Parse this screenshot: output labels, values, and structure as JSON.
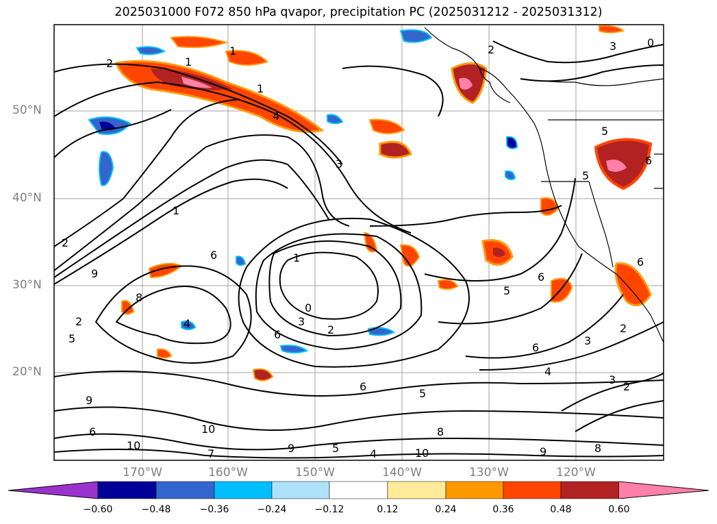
{
  "title": "2025031000 F072 850 hPa qvapor, precipitation PC (2025031212 - 2025031312)",
  "lat_labels": [
    "50°N",
    "40°N",
    "30°N",
    "20°N"
  ],
  "lon_labels": [
    "170°W",
    "160°W",
    "150°W",
    "140°W",
    "130°W",
    "120°W"
  ],
  "colorbar": {
    "colors": [
      "#9933cc",
      "#000099",
      "#3366cc",
      "#00bfff",
      "#aee2fa",
      "#ffffff",
      "#ffeb99",
      "#ff9900",
      "#ff4500",
      "#b22222",
      "#ff80aa"
    ],
    "ticks": [
      "−0.60",
      "−0.48",
      "−0.36",
      "−0.24",
      "−0.12",
      "0.12",
      "0.24",
      "0.36",
      "0.48",
      "0.60"
    ]
  },
  "contour_labels": [
    "2",
    "1",
    "1",
    "0",
    "1",
    "2",
    "3",
    "3",
    "4",
    "5",
    "5",
    "6",
    "6",
    "6",
    "6",
    "2",
    "2",
    "3",
    "1",
    "2",
    "9",
    "8",
    "6",
    "5",
    "4",
    "3",
    "2",
    "6",
    "10",
    "10",
    "9",
    "9",
    "8",
    "6",
    "5",
    "10",
    "9",
    "8",
    "7",
    "6",
    "5",
    "4",
    "3",
    "2",
    "1",
    "0",
    "4",
    "5"
  ]
}
